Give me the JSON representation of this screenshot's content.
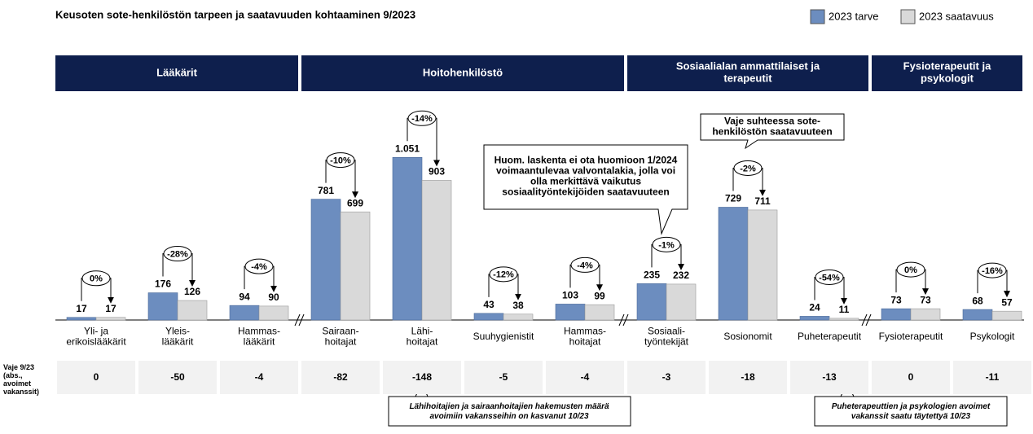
{
  "chart_data": {
    "type": "bar",
    "title": "Keusoten sote-henkilöstön tarpeen ja saatavuuden kohtaaminen 9/2023",
    "groups": [
      {
        "name": "Lääkärit",
        "size": 3
      },
      {
        "name": "Hoitohenkilöstö",
        "size": 4
      },
      {
        "name": "Sosiaalialan ammattilaiset ja\nterapeutit",
        "size": 3
      },
      {
        "name": "Fysioterapeutit ja\npsykologit",
        "size": 2
      }
    ],
    "categories": [
      "Yli- ja\nerikoislääkärit",
      "Yleis-\nlääkärit",
      "Hammas-\nlääkärit",
      "Sairaan-\nhoitajat",
      "Lähi-\nhoitajat",
      "Suuhygienistit",
      "Hammas-\nhoitajat",
      "Sosiaali-\ntyöntekijät",
      "Sosionomit",
      "Puheterapeutit",
      "Fysioterapeutit",
      "Psykologit"
    ],
    "series": [
      {
        "name": "2023 tarve",
        "color": "#6c8dbf",
        "values": [
          17,
          176,
          94,
          781,
          1051,
          43,
          103,
          235,
          729,
          24,
          73,
          68
        ],
        "value_labels": [
          "17",
          "176",
          "94",
          "781",
          "1.051",
          "43",
          "103",
          "235",
          "729",
          "24",
          "73",
          "68"
        ]
      },
      {
        "name": "2023 saatavuus",
        "color": "#d9d9d9",
        "values": [
          17,
          126,
          90,
          699,
          903,
          38,
          99,
          232,
          711,
          11,
          73,
          57
        ]
      }
    ],
    "changes": [
      0,
      -28,
      -4,
      -10,
      -14,
      -12,
      -4,
      -1,
      -2,
      -54,
      0,
      -16
    ],
    "change_labels": [
      "0%",
      "-28%",
      "-4%",
      "-10%",
      "-14%",
      "-12%",
      "-4%",
      "-1%",
      "-2%",
      "-54%",
      "0%",
      "-16%"
    ],
    "gap_label": "Vaje 9/23\n(abs.,\navoimet\nvakanssit)",
    "gap_values": [
      0,
      -50,
      -4,
      -82,
      -148,
      -5,
      -4,
      -3,
      -18,
      -13,
      0,
      -11
    ],
    "ylim": [
      0,
      1100
    ],
    "annotations": [
      "Vaje suhteessa sote-\nhenkilöstön saatavuuteen",
      "Huom. laskenta ei ota huomioon 1/2024\nvoimaantulevaa valvontalakia, jolla voi\nolla merkittävä vaikutus\nsosiaalityöntekijöiden saatavuuteen",
      "Lähihoitajien ja sairaanhoitajien hakemusten määrä\navoimiin vakansseihin on kasvanut 10/23",
      "Puheterapeuttien ja psykologien avoimet\nvakanssit saatu täytettyä 10/23"
    ]
  }
}
